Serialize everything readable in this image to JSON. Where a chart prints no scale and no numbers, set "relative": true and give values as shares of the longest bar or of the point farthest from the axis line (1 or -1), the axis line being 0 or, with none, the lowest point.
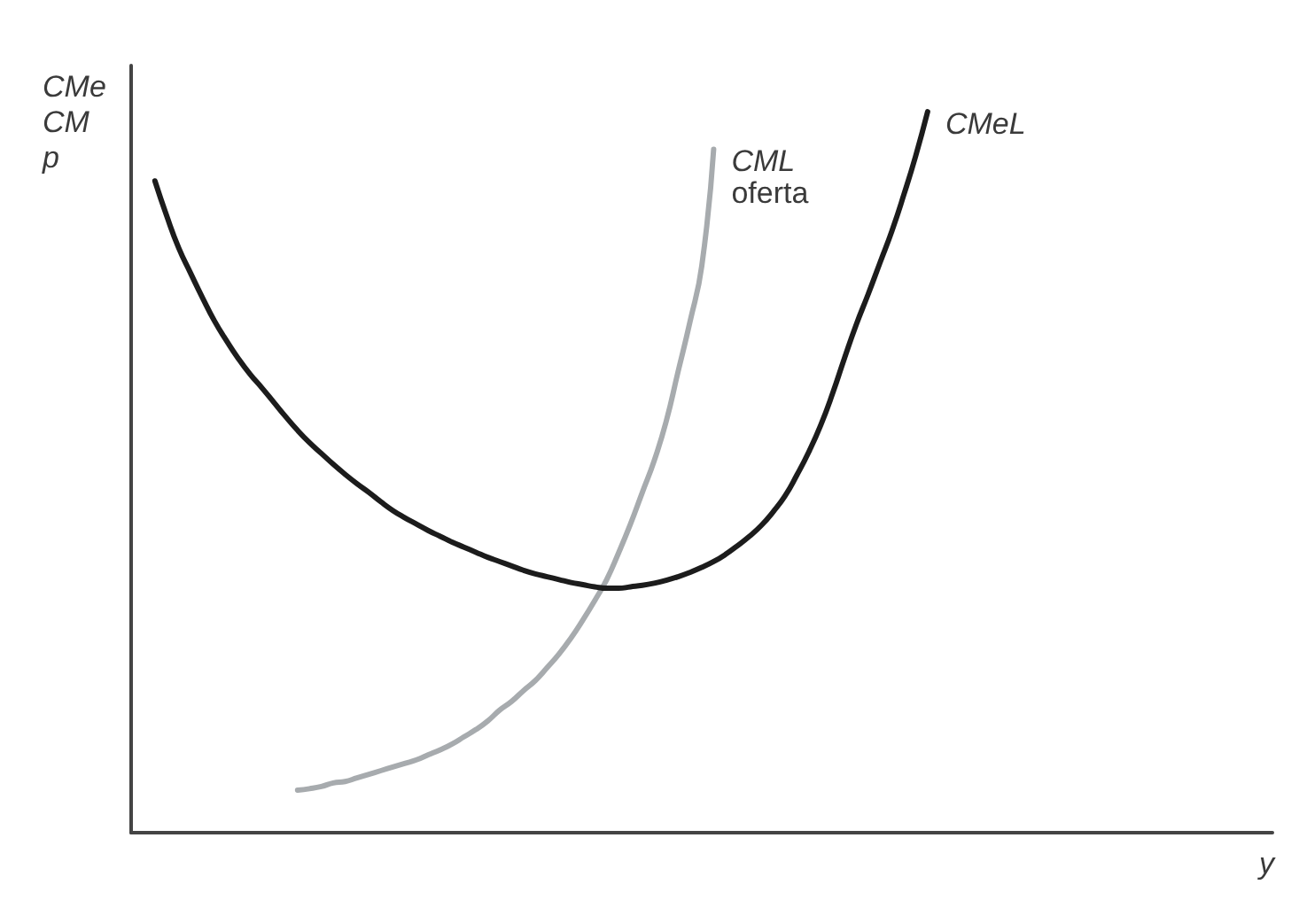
{
  "chart_data": {
    "type": "line",
    "relative": true,
    "xlabel": "y",
    "ylabel": "CMe\nCM\np",
    "line_style": "solid",
    "categories": [
      null,
      null,
      null,
      null,
      null,
      null,
      null,
      null,
      null,
      null,
      null,
      null,
      null,
      null,
      null,
      null,
      null,
      null,
      null,
      null,
      null,
      null,
      null,
      null,
      null,
      null,
      null,
      null,
      null,
      null,
      null,
      null,
      null,
      null,
      null,
      null,
      null,
      null,
      null,
      null,
      null,
      null,
      null,
      null,
      null,
      null,
      null,
      null,
      null,
      null,
      null,
      null,
      null,
      null,
      null,
      null,
      null,
      null,
      null,
      null,
      null,
      null,
      null,
      null,
      null,
      null,
      null,
      null,
      null,
      null,
      null,
      null,
      null,
      null,
      null,
      null,
      null,
      null,
      null,
      null,
      null,
      null,
      null,
      null,
      null,
      null,
      null,
      null,
      null,
      null,
      null,
      null,
      null,
      null,
      null,
      null,
      null
    ],
    "series": [
      {
        "name": "CML\noferta",
        "color": "#a7abae",
        "values": [
          null,
          null,
          null,
          null,
          null,
          null,
          null,
          null,
          null,
          null,
          null,
          null,
          null,
          null,
          0.059,
          0.061,
          0.064,
          0.069,
          0.071,
          0.076,
          0.081,
          0.086,
          0.091,
          0.096,
          0.101,
          0.108,
          0.115,
          0.123,
          0.133,
          0.143,
          0.155,
          0.17,
          0.182,
          0.197,
          0.211,
          0.229,
          0.248,
          0.27,
          0.295,
          0.322,
          0.351,
          0.388,
          0.428,
          0.472,
          0.516,
          0.57,
          0.639,
          0.708,
          0.786,
          0.948,
          null,
          null,
          null,
          null,
          null,
          null,
          null,
          null,
          null,
          null,
          null,
          null,
          null,
          null,
          null,
          null,
          null,
          null,
          null,
          null,
          null,
          null,
          null,
          null,
          null,
          null,
          null,
          null,
          null,
          null,
          null,
          null,
          null,
          null,
          null,
          null,
          null,
          null,
          null,
          null,
          null,
          null,
          null,
          null,
          null,
          null,
          null
        ]
      },
      {
        "name": "CMeL",
        "color": "#1c1c1c",
        "values": [
          null,
          null,
          0.904,
          0.855,
          0.811,
          0.776,
          0.742,
          0.71,
          0.683,
          0.658,
          0.636,
          0.617,
          0.597,
          0.577,
          0.558,
          0.541,
          0.526,
          0.511,
          0.497,
          0.484,
          0.472,
          0.459,
          0.447,
          0.437,
          0.428,
          0.419,
          0.411,
          0.403,
          0.396,
          0.389,
          0.382,
          0.376,
          0.37,
          0.364,
          0.359,
          0.355,
          0.351,
          0.347,
          0.344,
          0.341,
          0.339,
          0.339,
          0.341,
          0.343,
          0.346,
          0.35,
          0.355,
          0.361,
          0.368,
          0.376,
          0.386,
          0.398,
          0.411,
          0.426,
          0.445,
          0.467,
          0.496,
          0.528,
          0.565,
          0.609,
          0.658,
          0.705,
          0.747,
          0.791,
          0.835,
          0.885,
          0.939,
          1,
          null,
          null,
          null,
          null,
          null,
          null,
          null,
          null,
          null,
          null,
          null,
          null,
          null,
          null,
          null,
          null,
          null,
          null,
          null,
          null,
          null,
          null,
          null,
          null,
          null,
          null,
          null,
          null,
          null
        ]
      }
    ]
  }
}
